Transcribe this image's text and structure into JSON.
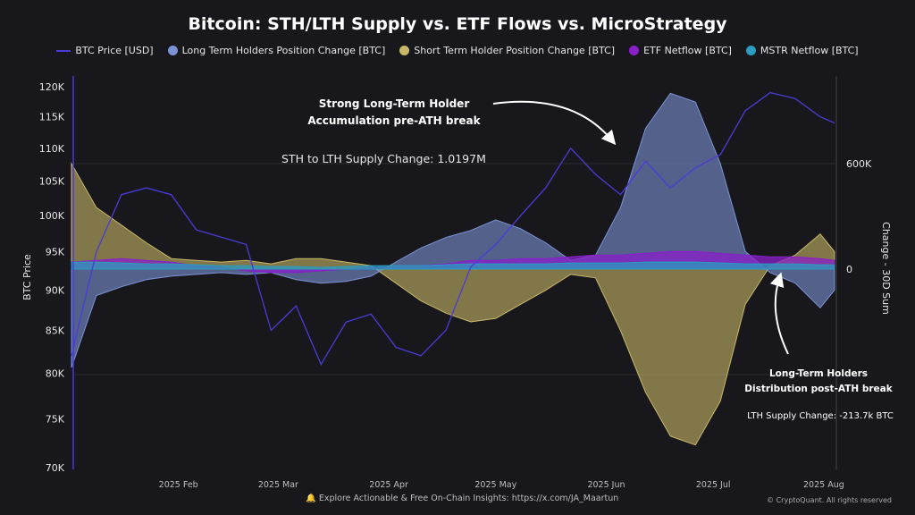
{
  "chart_data": {
    "type": "area",
    "title": "Bitcoin: STH/LTH Supply vs. ETF Flows vs. MicroStrategy",
    "ylabel_left": "BTC Price",
    "ylabel_right": "Change - 30D Sum",
    "left_axis": {
      "scale": "log",
      "range": [
        70000,
        120000
      ],
      "ticks": [
        "70K",
        "75K",
        "80K",
        "85K",
        "90K",
        "95K",
        "100K",
        "105K",
        "110K",
        "115K",
        "120K"
      ]
    },
    "right_axis": {
      "ticks": [
        "0",
        "600K"
      ]
    },
    "x_ticks": [
      "2025 Feb",
      "2025 Mar",
      "2025 Apr",
      "2025 May",
      "2025 Jun",
      "2025 Jul",
      "2025 Aug"
    ],
    "x_tick_dates": [
      "2025-02-01",
      "2025-03-01",
      "2025-04-01",
      "2025-05-01",
      "2025-06-01",
      "2025-07-01",
      "2025-08-01"
    ],
    "x": [
      "2025-01-02",
      "2025-01-09",
      "2025-01-16",
      "2025-01-23",
      "2025-01-30",
      "2025-02-06",
      "2025-02-13",
      "2025-02-20",
      "2025-02-27",
      "2025-03-06",
      "2025-03-13",
      "2025-03-20",
      "2025-03-27",
      "2025-04-03",
      "2025-04-10",
      "2025-04-17",
      "2025-04-24",
      "2025-05-01",
      "2025-05-08",
      "2025-05-15",
      "2025-05-22",
      "2025-05-29",
      "2025-06-05",
      "2025-06-12",
      "2025-06-19",
      "2025-06-26",
      "2025-07-03",
      "2025-07-10",
      "2025-07-17",
      "2025-07-24",
      "2025-07-31",
      "2025-08-04"
    ],
    "series": [
      {
        "name": "BTC Price [USD]",
        "axis": "left",
        "color": "#4b3bd6",
        "values": [
          82000,
          95000,
          103000,
          104000,
          103000,
          98000,
          97000,
          96000,
          85000,
          88000,
          81000,
          86000,
          87000,
          83000,
          82000,
          85000,
          93000,
          96000,
          100000,
          104000,
          110000,
          106000,
          103000,
          108000,
          104000,
          107000,
          109000,
          116000,
          119000,
          118000,
          115000,
          114000
        ]
      },
      {
        "name": "Long Term Holders Position Change [BTC]",
        "axis": "right",
        "color": "#7b93d6",
        "values": [
          -560000,
          -150000,
          -100000,
          -60000,
          -40000,
          -30000,
          -20000,
          -30000,
          -20000,
          -60000,
          -80000,
          -70000,
          -40000,
          40000,
          120000,
          180000,
          220000,
          280000,
          230000,
          150000,
          50000,
          80000,
          350000,
          800000,
          1000000,
          950000,
          600000,
          100000,
          -20000,
          -80000,
          -220000,
          -120000
        ]
      },
      {
        "name": "Short Term Holder Position Change [BTC]",
        "axis": "right",
        "color": "#c9b867",
        "values": [
          600000,
          350000,
          250000,
          150000,
          60000,
          50000,
          40000,
          50000,
          30000,
          60000,
          60000,
          40000,
          20000,
          -80000,
          -180000,
          -250000,
          -300000,
          -280000,
          -200000,
          -120000,
          -30000,
          -50000,
          -350000,
          -700000,
          -950000,
          -1000000,
          -750000,
          -200000,
          20000,
          80000,
          200000,
          100000
        ]
      },
      {
        "name": "ETF Netflow [BTC]",
        "axis": "right",
        "color": "#8a1fc9",
        "values": [
          40000,
          50000,
          60000,
          50000,
          40000,
          20000,
          10000,
          -10000,
          -20000,
          -20000,
          -10000,
          0,
          10000,
          10000,
          20000,
          30000,
          50000,
          50000,
          60000,
          60000,
          70000,
          80000,
          80000,
          90000,
          100000,
          100000,
          90000,
          80000,
          70000,
          70000,
          60000,
          50000
        ]
      },
      {
        "name": "MSTR Netflow [BTC]",
        "axis": "right",
        "color": "#2a9cbf",
        "values": [
          40000,
          40000,
          35000,
          30000,
          30000,
          25000,
          20000,
          20000,
          15000,
          15000,
          10000,
          15000,
          20000,
          20000,
          20000,
          25000,
          30000,
          30000,
          30000,
          30000,
          35000,
          35000,
          35000,
          40000,
          40000,
          40000,
          35000,
          30000,
          30000,
          30000,
          25000,
          25000
        ]
      }
    ],
    "annotations": {
      "lth_accumulation": [
        "Strong Long-Term Holder",
        "Accumulation pre-ATH break"
      ],
      "supply_change": "STH to LTH Supply Change: 1.0197M",
      "lth_distribution": [
        "Long-Term Holders",
        "Distribution post-ATH break"
      ],
      "lth_supply_change": "LTH Supply Change: -213.7k BTC"
    }
  },
  "footer": {
    "text": "Explore Actionable & Free On-Chain Insights: ",
    "link": "https://x.com/JA_Maartun",
    "copyright": "© CryptoQuant. All rights reserved"
  }
}
